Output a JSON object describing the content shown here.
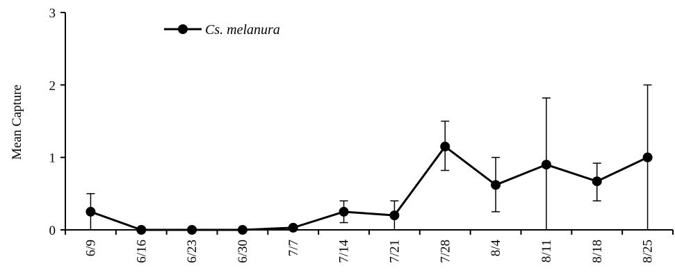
{
  "chart_data": {
    "type": "line",
    "xlabel": "",
    "ylabel": "Mean Capture",
    "ylim": [
      0,
      3
    ],
    "yticks": [
      "0",
      "1",
      "2",
      "3"
    ],
    "categories": [
      "6/9",
      "6/16",
      "6/23",
      "6/30",
      "7/7",
      "7/14",
      "7/21",
      "7/28",
      "8/4",
      "8/11",
      "8/18",
      "8/25"
    ],
    "grid": false,
    "legend_position": "top-left",
    "series": [
      {
        "name": "Cs. melanura",
        "color": "#000000",
        "marker": "circle",
        "values": [
          0.25,
          0.0,
          0.0,
          0.0,
          0.03,
          0.25,
          0.2,
          1.15,
          0.62,
          0.9,
          0.67,
          1.0
        ],
        "error_upper": [
          0.5,
          0.0,
          0.0,
          0.0,
          0.03,
          0.4,
          0.4,
          1.5,
          1.0,
          1.82,
          0.92,
          2.0
        ],
        "error_lower": [
          0.0,
          0.0,
          0.0,
          0.0,
          0.03,
          0.1,
          0.0,
          0.82,
          0.25,
          0.0,
          0.4,
          0.0
        ]
      }
    ]
  }
}
